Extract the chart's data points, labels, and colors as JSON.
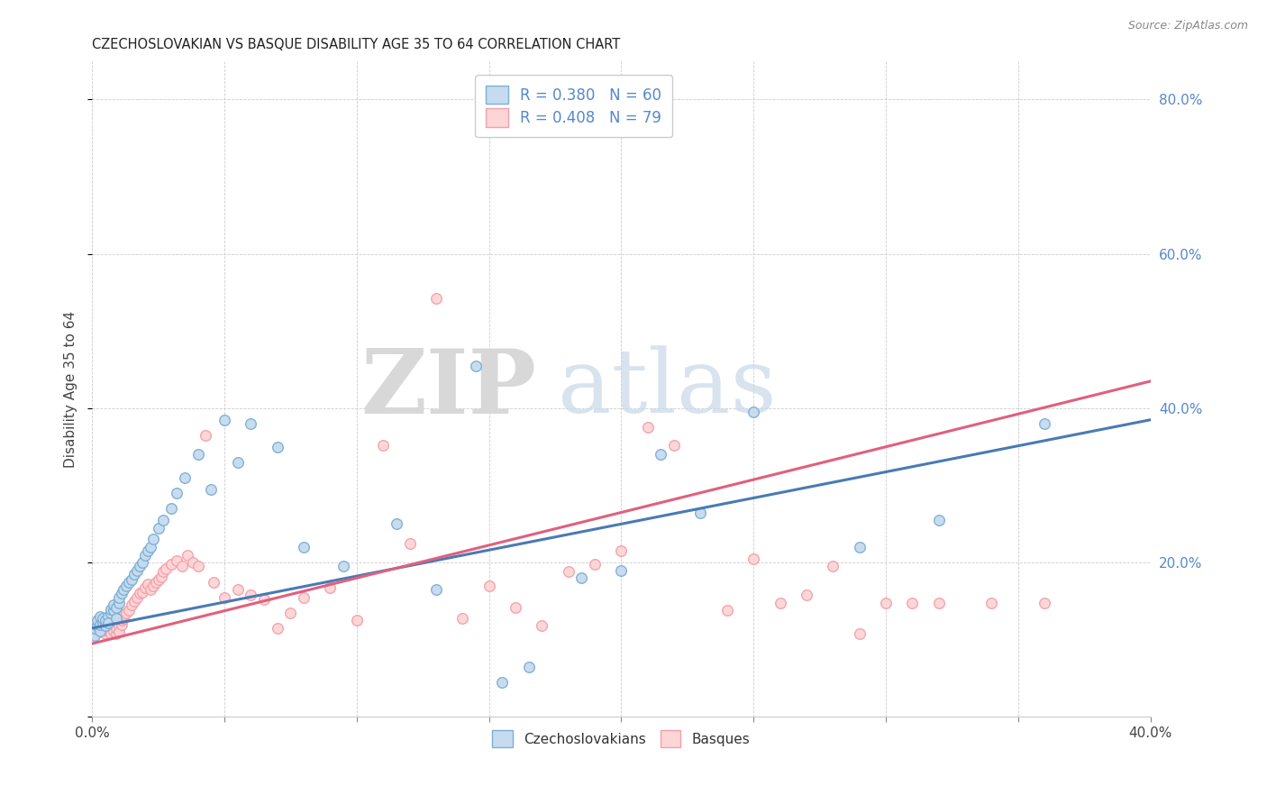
{
  "title": "CZECHOSLOVAKIAN VS BASQUE DISABILITY AGE 35 TO 64 CORRELATION CHART",
  "source": "Source: ZipAtlas.com",
  "ylabel": "Disability Age 35 to 64",
  "xlim": [
    0.0,
    0.4
  ],
  "ylim": [
    0.0,
    0.85
  ],
  "xtick_positions": [
    0.0,
    0.05,
    0.1,
    0.15,
    0.2,
    0.25,
    0.3,
    0.35,
    0.4
  ],
  "yticks_right": [
    0.0,
    0.2,
    0.4,
    0.6,
    0.8
  ],
  "ytick_right_labels": [
    "",
    "20.0%",
    "40.0%",
    "60.0%",
    "80.0%"
  ],
  "blue_color": "#7bafd4",
  "blue_face": "#c6dbef",
  "pink_color": "#f4a0a8",
  "pink_face": "#fcd5d7",
  "line_blue": "#4a7ab5",
  "line_pink": "#e0607e",
  "czechoslovakian_x": [
    0.001,
    0.001,
    0.002,
    0.002,
    0.003,
    0.003,
    0.003,
    0.004,
    0.004,
    0.005,
    0.005,
    0.006,
    0.006,
    0.007,
    0.007,
    0.008,
    0.008,
    0.009,
    0.009,
    0.01,
    0.01,
    0.011,
    0.012,
    0.013,
    0.014,
    0.015,
    0.016,
    0.017,
    0.018,
    0.019,
    0.02,
    0.021,
    0.022,
    0.023,
    0.025,
    0.027,
    0.03,
    0.032,
    0.035,
    0.04,
    0.045,
    0.05,
    0.055,
    0.06,
    0.07,
    0.08,
    0.095,
    0.115,
    0.13,
    0.145,
    0.155,
    0.165,
    0.185,
    0.2,
    0.215,
    0.23,
    0.25,
    0.29,
    0.32,
    0.36
  ],
  "czechoslovakian_y": [
    0.105,
    0.115,
    0.118,
    0.125,
    0.112,
    0.12,
    0.13,
    0.122,
    0.128,
    0.118,
    0.125,
    0.13,
    0.122,
    0.135,
    0.14,
    0.138,
    0.145,
    0.128,
    0.142,
    0.148,
    0.155,
    0.16,
    0.165,
    0.17,
    0.175,
    0.178,
    0.185,
    0.19,
    0.195,
    0.2,
    0.21,
    0.215,
    0.22,
    0.23,
    0.245,
    0.255,
    0.27,
    0.29,
    0.31,
    0.34,
    0.295,
    0.385,
    0.33,
    0.38,
    0.35,
    0.22,
    0.195,
    0.25,
    0.165,
    0.455,
    0.045,
    0.065,
    0.18,
    0.19,
    0.34,
    0.265,
    0.395,
    0.22,
    0.255,
    0.38
  ],
  "basque_x": [
    0.001,
    0.002,
    0.002,
    0.003,
    0.003,
    0.004,
    0.004,
    0.005,
    0.005,
    0.006,
    0.006,
    0.007,
    0.007,
    0.008,
    0.008,
    0.009,
    0.009,
    0.01,
    0.01,
    0.011,
    0.011,
    0.012,
    0.012,
    0.013,
    0.014,
    0.015,
    0.016,
    0.017,
    0.018,
    0.019,
    0.02,
    0.021,
    0.022,
    0.023,
    0.024,
    0.025,
    0.026,
    0.027,
    0.028,
    0.03,
    0.032,
    0.034,
    0.036,
    0.038,
    0.04,
    0.043,
    0.046,
    0.05,
    0.055,
    0.06,
    0.065,
    0.07,
    0.075,
    0.08,
    0.09,
    0.1,
    0.11,
    0.12,
    0.13,
    0.14,
    0.15,
    0.16,
    0.17,
    0.18,
    0.19,
    0.2,
    0.21,
    0.22,
    0.24,
    0.25,
    0.26,
    0.27,
    0.28,
    0.29,
    0.3,
    0.31,
    0.32,
    0.34,
    0.36
  ],
  "basque_y": [
    0.108,
    0.112,
    0.118,
    0.115,
    0.122,
    0.11,
    0.118,
    0.108,
    0.115,
    0.112,
    0.12,
    0.108,
    0.118,
    0.112,
    0.122,
    0.108,
    0.115,
    0.118,
    0.11,
    0.12,
    0.125,
    0.128,
    0.132,
    0.135,
    0.138,
    0.145,
    0.15,
    0.155,
    0.16,
    0.162,
    0.168,
    0.172,
    0.165,
    0.17,
    0.175,
    0.178,
    0.182,
    0.188,
    0.192,
    0.198,
    0.202,
    0.195,
    0.21,
    0.2,
    0.195,
    0.365,
    0.175,
    0.155,
    0.165,
    0.158,
    0.152,
    0.115,
    0.135,
    0.155,
    0.168,
    0.125,
    0.352,
    0.225,
    0.542,
    0.128,
    0.17,
    0.142,
    0.118,
    0.188,
    0.198,
    0.215,
    0.375,
    0.352,
    0.138,
    0.205,
    0.148,
    0.158,
    0.195,
    0.108,
    0.148,
    0.148,
    0.148,
    0.148,
    0.148
  ],
  "line_blue_x0": 0.0,
  "line_blue_y0": 0.115,
  "line_blue_x1": 0.4,
  "line_blue_y1": 0.385,
  "line_pink_x0": 0.0,
  "line_pink_y0": 0.095,
  "line_pink_x1": 0.4,
  "line_pink_y1": 0.435
}
